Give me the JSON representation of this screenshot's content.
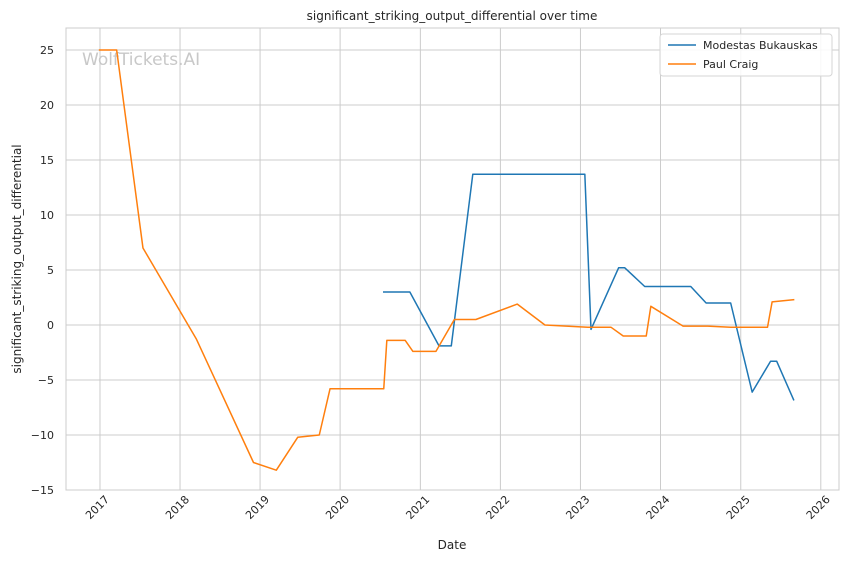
{
  "watermark": "WolfTickets.AI",
  "chart_data": {
    "type": "line",
    "title": "significant_striking_output_differential over time",
    "xlabel": "Date",
    "ylabel": "significant_striking_output_differential",
    "x_ticks": [
      "2017",
      "2018",
      "2019",
      "2020",
      "2021",
      "2022",
      "2023",
      "2024",
      "2025",
      "2026"
    ],
    "y_ticks": [
      -15,
      -10,
      -5,
      0,
      5,
      10,
      15,
      20,
      25
    ],
    "xlim": [
      "2016-07-30",
      "2026-03-25"
    ],
    "ylim": [
      -15,
      27
    ],
    "grid": true,
    "legend_position": "top-right",
    "series": [
      {
        "name": "Modestas Bukauskas",
        "color": "#1f77b4",
        "points": [
          [
            "2020-07-18",
            3.0
          ],
          [
            "2020-11-14",
            3.0
          ],
          [
            "2021-03-27",
            -1.9
          ],
          [
            "2021-05-22",
            -1.9
          ],
          [
            "2021-08-28",
            13.7
          ],
          [
            "2023-01-21",
            13.7
          ],
          [
            "2023-02-18",
            -0.4
          ],
          [
            "2023-06-24",
            5.2
          ],
          [
            "2023-07-22",
            5.2
          ],
          [
            "2023-10-21",
            3.5
          ],
          [
            "2024-05-18",
            3.5
          ],
          [
            "2024-07-27",
            2.0
          ],
          [
            "2024-11-16",
            2.0
          ],
          [
            "2025-02-22",
            -6.1
          ],
          [
            "2025-05-17",
            -3.3
          ],
          [
            "2025-06-14",
            -3.3
          ],
          [
            "2025-08-30",
            -6.8
          ]
        ]
      },
      {
        "name": "Paul Craig",
        "color": "#ff7f0e",
        "points": [
          [
            "2016-12-30",
            25.0
          ],
          [
            "2017-03-18",
            25.0
          ],
          [
            "2017-07-16",
            7.0
          ],
          [
            "2018-03-17",
            -1.3
          ],
          [
            "2018-12-02",
            -12.5
          ],
          [
            "2019-03-16",
            -13.2
          ],
          [
            "2019-06-22",
            -10.2
          ],
          [
            "2019-09-28",
            -10.0
          ],
          [
            "2019-11-16",
            -5.8
          ],
          [
            "2020-07-18",
            -5.8
          ],
          [
            "2020-08-01",
            -1.4
          ],
          [
            "2020-10-24",
            -1.4
          ],
          [
            "2020-11-28",
            -2.4
          ],
          [
            "2021-03-13",
            -2.4
          ],
          [
            "2021-06-05",
            0.5
          ],
          [
            "2021-09-11",
            0.5
          ],
          [
            "2022-03-19",
            1.9
          ],
          [
            "2022-07-23",
            0.0
          ],
          [
            "2023-02-04",
            -0.2
          ],
          [
            "2023-05-20",
            -0.2
          ],
          [
            "2023-07-15",
            -1.0
          ],
          [
            "2023-10-28",
            -1.0
          ],
          [
            "2023-11-18",
            1.7
          ],
          [
            "2024-04-13",
            -0.1
          ],
          [
            "2024-08-03",
            -0.1
          ],
          [
            "2024-11-16",
            -0.2
          ],
          [
            "2025-05-03",
            -0.2
          ],
          [
            "2025-05-24",
            2.1
          ],
          [
            "2025-08-30",
            2.3
          ]
        ]
      }
    ]
  }
}
